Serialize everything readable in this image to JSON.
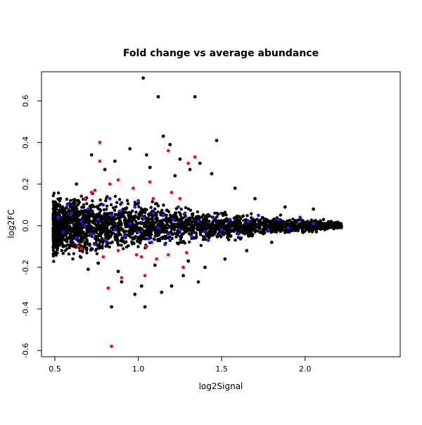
{
  "chart_data": {
    "type": "scatter",
    "title": "Fold change vs average abundance",
    "xlabel": "log2Signal",
    "ylabel": "log2FC",
    "xlim": [
      0.42,
      2.57
    ],
    "ylim": [
      -0.63,
      0.74
    ],
    "xticks": [
      0.5,
      1.0,
      1.5,
      2.0
    ],
    "xtick_labels": [
      "0.5",
      "1.0",
      "1.5",
      "2.0"
    ],
    "yticks": [
      -0.6,
      -0.4,
      -0.2,
      0.0,
      0.2,
      0.4,
      0.6
    ],
    "ytick_labels": [
      "-0.6",
      "-0.4",
      "-0.2",
      "0.0",
      "0.2",
      "0.4",
      "0.6"
    ],
    "grid": false,
    "legend": "none",
    "series": [
      {
        "color": "#000000",
        "points": [
          [
            1.03,
            0.71
          ],
          [
            1.12,
            0.62
          ],
          [
            1.34,
            0.62
          ],
          [
            1.47,
            0.41
          ],
          [
            1.15,
            0.43
          ],
          [
            0.95,
            0.37
          ],
          [
            1.05,
            0.34
          ],
          [
            1.25,
            0.32
          ],
          [
            1.37,
            0.3
          ],
          [
            1.19,
            0.39
          ],
          [
            0.72,
            0.34
          ],
          [
            0.86,
            0.31
          ],
          [
            1.07,
            0.28
          ],
          [
            1.31,
            0.27
          ],
          [
            1.44,
            0.25
          ],
          [
            0.8,
            0.27
          ],
          [
            1.22,
            0.24
          ],
          [
            0.63,
            0.2
          ],
          [
            1.58,
            0.18
          ],
          [
            1.7,
            0.13
          ],
          [
            1.88,
            0.09
          ],
          [
            2.05,
            0.08
          ],
          [
            0.84,
            -0.39
          ],
          [
            1.04,
            -0.39
          ],
          [
            1.14,
            -0.32
          ],
          [
            1.36,
            -0.27
          ],
          [
            0.98,
            -0.33
          ],
          [
            1.27,
            -0.24
          ],
          [
            0.9,
            -0.27
          ],
          [
            1.2,
            -0.29
          ],
          [
            0.7,
            -0.21
          ],
          [
            1.52,
            -0.16
          ],
          [
            1.65,
            -0.12
          ],
          [
            1.8,
            -0.08
          ],
          [
            1.02,
            -0.29
          ],
          [
            0.88,
            -0.22
          ],
          [
            1.1,
            -0.19
          ],
          [
            1.4,
            -0.2
          ],
          [
            0.76,
            -0.18
          ],
          [
            1.3,
            -0.17
          ]
        ]
      },
      {
        "color": "#e8102c",
        "points": [
          [
            0.77,
            0.4
          ],
          [
            0.77,
            0.31
          ],
          [
            1.18,
            0.36
          ],
          [
            1.3,
            0.3
          ],
          [
            1.34,
            0.33
          ],
          [
            0.72,
            0.16
          ],
          [
            0.83,
            0.2
          ],
          [
            1.07,
            0.21
          ],
          [
            0.74,
            0.17
          ],
          [
            0.88,
            0.22
          ],
          [
            0.97,
            0.18
          ],
          [
            1.2,
            0.16
          ],
          [
            1.09,
            0.13
          ],
          [
            0.68,
            0.13
          ],
          [
            1.25,
            0.13
          ],
          [
            0.82,
            -0.3
          ],
          [
            0.84,
            -0.58
          ],
          [
            1.04,
            -0.24
          ],
          [
            0.9,
            -0.25
          ],
          [
            1.27,
            -0.2
          ],
          [
            0.79,
            -0.15
          ],
          [
            0.88,
            -0.12
          ],
          [
            0.99,
            -0.14
          ],
          [
            1.18,
            -0.14
          ],
          [
            1.29,
            -0.13
          ],
          [
            0.64,
            -0.1
          ],
          [
            1.05,
            -0.1
          ],
          [
            0.66,
            -0.11
          ],
          [
            1.11,
            -0.16
          ],
          [
            1.02,
            -0.15
          ]
        ]
      },
      {
        "color": "#1a1aff",
        "points": [
          [
            0.52,
            0.04
          ],
          [
            0.55,
            -0.03
          ],
          [
            0.6,
            0.06
          ],
          [
            0.63,
            -0.06
          ],
          [
            0.66,
            0.02
          ],
          [
            0.7,
            0.08
          ],
          [
            0.72,
            -0.04
          ],
          [
            0.76,
            0.03
          ],
          [
            0.79,
            0.1
          ],
          [
            0.81,
            -0.07
          ],
          [
            0.84,
            0.05
          ],
          [
            0.86,
            -0.02
          ],
          [
            0.89,
            0.07
          ],
          [
            0.92,
            -0.05
          ],
          [
            0.95,
            0.01
          ],
          [
            0.98,
            0.09
          ],
          [
            1.0,
            -0.03
          ],
          [
            1.03,
            0.04
          ],
          [
            1.06,
            -0.06
          ],
          [
            1.09,
            0.06
          ],
          [
            1.12,
            -0.01
          ],
          [
            1.15,
            0.05
          ],
          [
            1.18,
            -0.04
          ],
          [
            1.21,
            0.03
          ],
          [
            1.25,
            -0.02
          ],
          [
            1.28,
            0.06
          ],
          [
            1.32,
            -0.05
          ],
          [
            1.36,
            0.02
          ],
          [
            1.4,
            -0.03
          ],
          [
            1.45,
            0.04
          ],
          [
            1.5,
            -0.02
          ],
          [
            1.55,
            0.03
          ],
          [
            1.6,
            -0.04
          ],
          [
            1.66,
            0.02
          ],
          [
            1.72,
            0.05
          ],
          [
            1.78,
            -0.02
          ],
          [
            1.84,
            0.03
          ],
          [
            1.9,
            -0.01
          ],
          [
            1.97,
            0.04
          ],
          [
            2.05,
            0.01
          ],
          [
            0.58,
            0.1
          ],
          [
            0.74,
            -0.09
          ],
          [
            0.9,
            0.11
          ],
          [
            1.08,
            -0.08
          ],
          [
            1.24,
            0.09
          ],
          [
            1.42,
            -0.07
          ],
          [
            0.68,
            0.0
          ],
          [
            0.83,
            0.13
          ],
          [
            1.0,
            0.12
          ],
          [
            1.16,
            -0.09
          ]
        ]
      }
    ],
    "background_cloud": {
      "color": "#000000",
      "x_range": [
        0.49,
        2.22
      ],
      "y_center": 0.0,
      "spread_at_start": 0.14,
      "spread_at_end": 0.015
    }
  }
}
